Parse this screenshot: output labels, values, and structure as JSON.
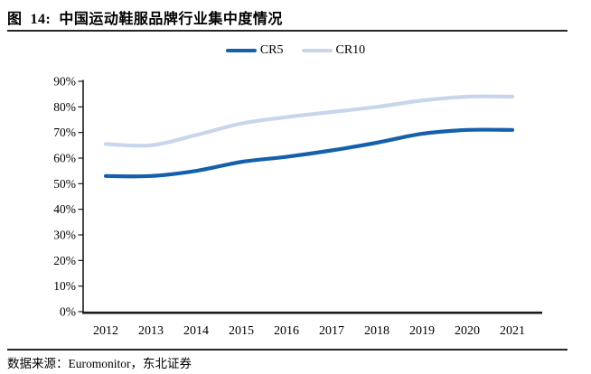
{
  "title": "图  14:  中国运动鞋服品牌行业集中度情况",
  "source": "数据来源：Euromonitor，东北证券",
  "colors": {
    "cr5_line": "#1560ac",
    "cr10_line": "#c7d6eb",
    "axis": "#1a1a1a",
    "text": "#000000",
    "divider": "#262626"
  },
  "chart_data": {
    "type": "line",
    "title": "中国运动鞋服品牌行业集中度情况",
    "categories": [
      "2012",
      "2013",
      "2014",
      "2015",
      "2016",
      "2017",
      "2018",
      "2019",
      "2020",
      "2021"
    ],
    "series": [
      {
        "name": "CR5",
        "color": "#1560ac",
        "values": [
          53,
          53,
          55,
          58.5,
          60.5,
          63,
          66,
          69.5,
          71,
          71
        ]
      },
      {
        "name": "CR10",
        "color": "#c7d6eb",
        "values": [
          65.5,
          65,
          69,
          73.5,
          76,
          78,
          80,
          82.5,
          84,
          84
        ]
      }
    ],
    "xlabel": "",
    "ylabel": "",
    "ylim": [
      0,
      90
    ],
    "ytick_step": 10,
    "ytick_format": "percent",
    "ytick_labels": [
      "0%",
      "10%",
      "20%",
      "30%",
      "40%",
      "50%",
      "60%",
      "70%",
      "80%",
      "90%"
    ],
    "grid": false,
    "legend_position": "top-center",
    "smoothed": true
  }
}
